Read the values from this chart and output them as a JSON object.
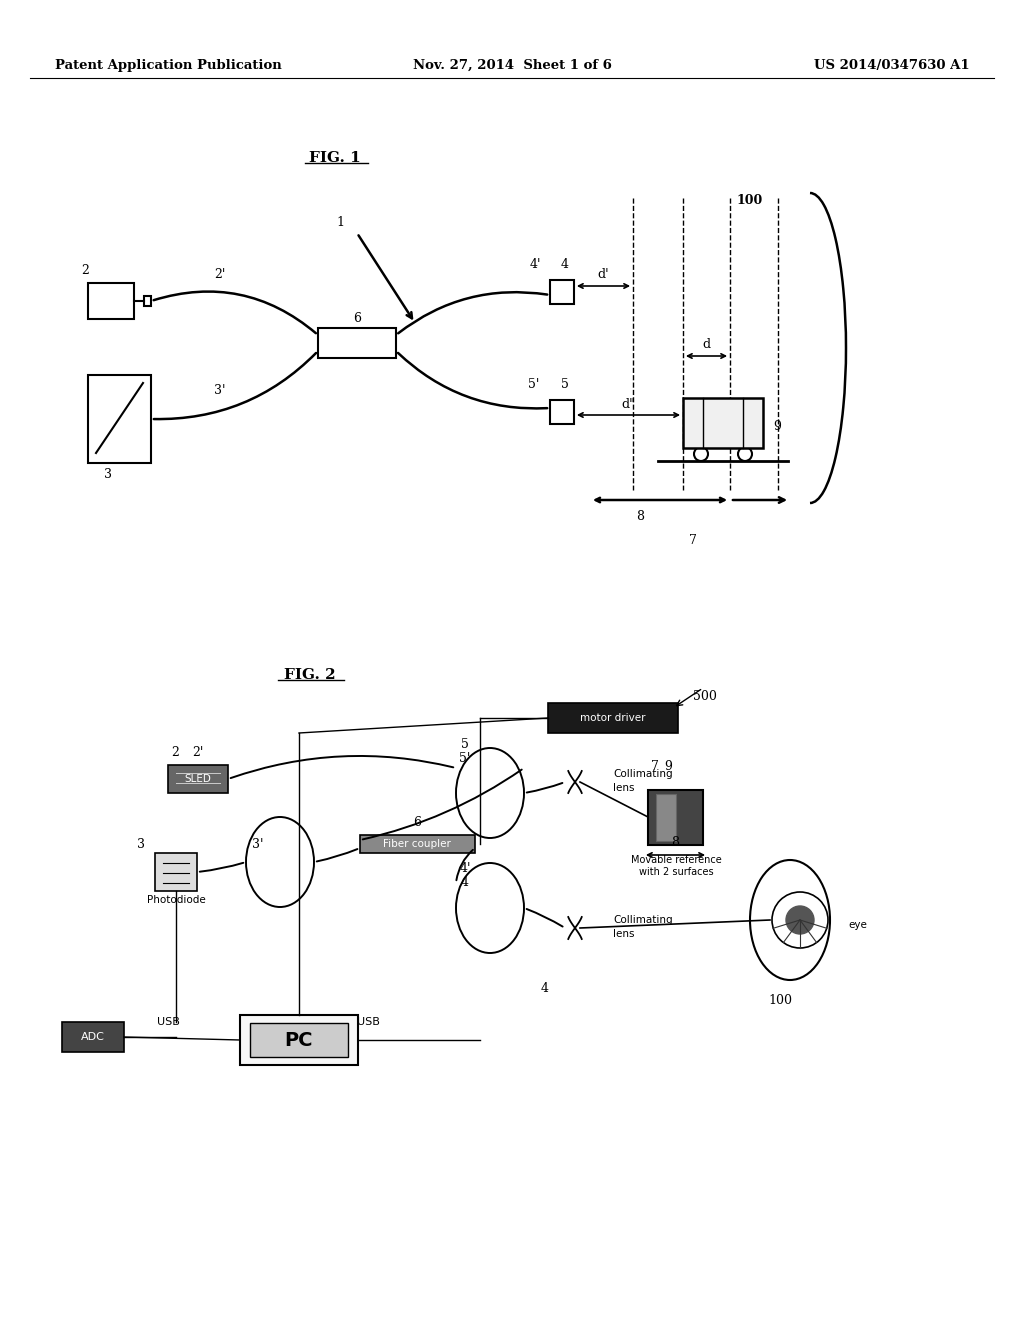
{
  "bg_color": "#ffffff",
  "header_left": "Patent Application Publication",
  "header_center": "Nov. 27, 2014  Sheet 1 of 6",
  "header_right": "US 2014/0347630 A1"
}
